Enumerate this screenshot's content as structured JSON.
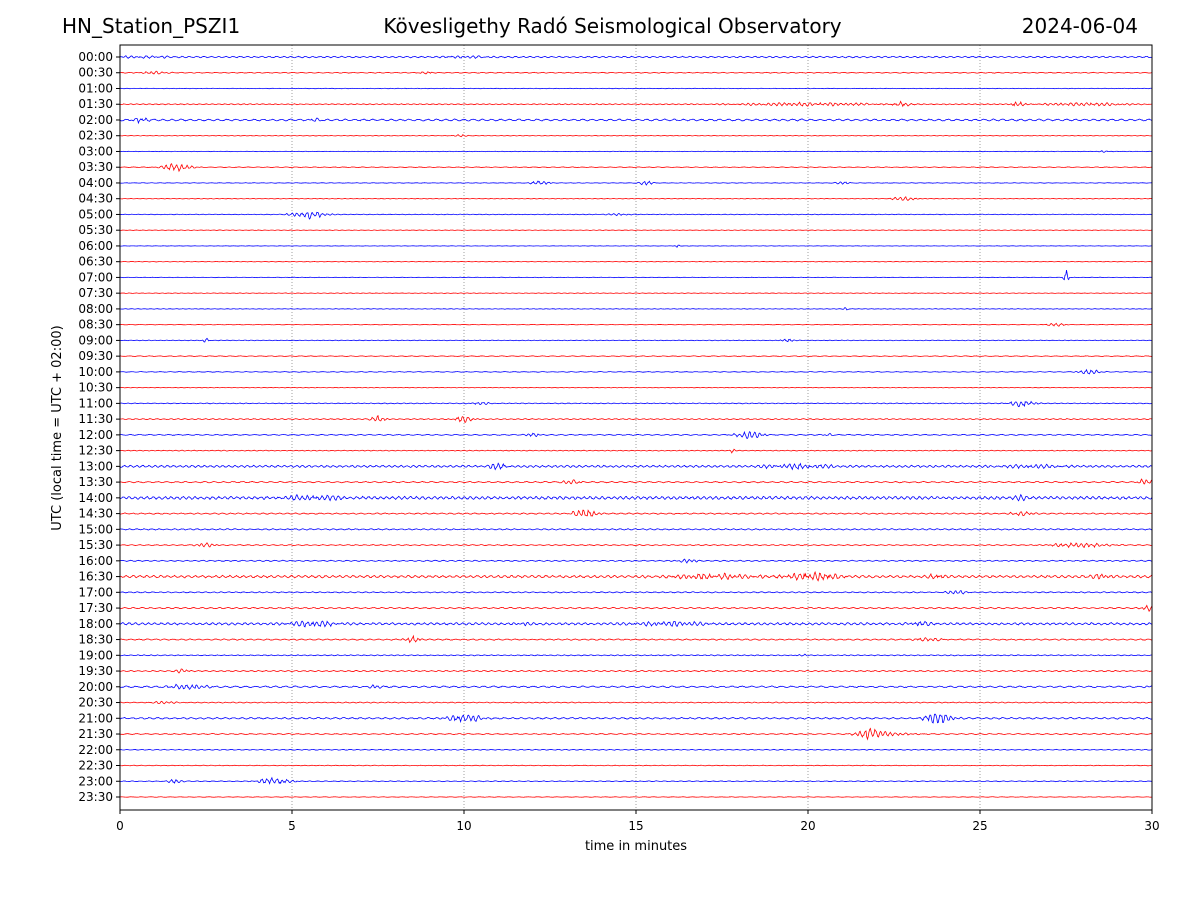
{
  "header": {
    "station": "HN_Station_PSZI1",
    "observatory": "Kövesligethy Radó Seismological Observatory",
    "date": "2024-06-04"
  },
  "chart_data": {
    "type": "line",
    "title": "Kövesligethy Radó Seismological Observatory",
    "xlabel": "time in minutes",
    "ylabel": "UTC (local time = UTC + 02:00)",
    "xlim": [
      0,
      30
    ],
    "xticks": [
      "0",
      "5",
      "10",
      "15",
      "20",
      "25",
      "30"
    ],
    "grid": "vertical dotted at each x tick",
    "colors": {
      "even_rows": "#0000ff",
      "odd_rows": "#ff0000",
      "grid": "#888888"
    },
    "series": [
      {
        "name": "00:00",
        "noise": 0.9,
        "events": [
          [
            0.5,
            1.5,
            1.0
          ],
          [
            10,
            1,
            1.0
          ]
        ]
      },
      {
        "name": "00:30",
        "noise": 0.5,
        "events": [
          [
            1,
            0.6,
            1.2
          ],
          [
            8.9,
            0.3,
            1.0
          ]
        ]
      },
      {
        "name": "01:00",
        "noise": 0.3,
        "events": []
      },
      {
        "name": "01:30",
        "noise": 0.6,
        "events": [
          [
            20,
            3,
            1.5
          ],
          [
            22.7,
            0.4,
            2.5
          ],
          [
            26.1,
            0.3,
            2.5
          ],
          [
            28,
            2,
            1.5
          ]
        ]
      },
      {
        "name": "02:00",
        "noise": 1.2,
        "events": [
          [
            0.6,
            0.3,
            2.5
          ],
          [
            5.7,
            0.3,
            1.5
          ]
        ]
      },
      {
        "name": "02:30",
        "noise": 0.3,
        "events": [
          [
            9.9,
            0.3,
            1.0
          ]
        ]
      },
      {
        "name": "03:00",
        "noise": 0.3,
        "events": [
          [
            28.6,
            0.2,
            1.0
          ]
        ]
      },
      {
        "name": "03:30",
        "noise": 0.4,
        "events": [
          [
            1.65,
            0.6,
            3.5
          ]
        ]
      },
      {
        "name": "04:00",
        "noise": 0.3,
        "events": [
          [
            12.2,
            0.4,
            2.0
          ],
          [
            15.3,
            0.3,
            2.0
          ],
          [
            21,
            0.3,
            1.5
          ]
        ]
      },
      {
        "name": "04:30",
        "noise": 0.3,
        "events": [
          [
            22.8,
            0.5,
            2.0
          ]
        ]
      },
      {
        "name": "05:00",
        "noise": 0.4,
        "events": [
          [
            5.5,
            0.7,
            4.0
          ],
          [
            14.5,
            0.5,
            1.0
          ]
        ]
      },
      {
        "name": "05:30",
        "noise": 0.3,
        "events": []
      },
      {
        "name": "06:00",
        "noise": 0.2,
        "events": [
          [
            16.2,
            0.1,
            1.5
          ]
        ]
      },
      {
        "name": "06:30",
        "noise": 0.3,
        "events": []
      },
      {
        "name": "07:00",
        "noise": 0.3,
        "events": [
          [
            27.5,
            0.1,
            7.0
          ]
        ]
      },
      {
        "name": "07:30",
        "noise": 0.3,
        "events": []
      },
      {
        "name": "08:00",
        "noise": 0.3,
        "events": [
          [
            21.1,
            0.1,
            1.5
          ]
        ]
      },
      {
        "name": "08:30",
        "noise": 0.3,
        "events": [
          [
            27.2,
            0.4,
            1.5
          ]
        ]
      },
      {
        "name": "09:00",
        "noise": 0.4,
        "events": [
          [
            2.5,
            0.1,
            3.0
          ],
          [
            19.4,
            0.3,
            1.5
          ]
        ]
      },
      {
        "name": "09:30",
        "noise": 0.4,
        "events": []
      },
      {
        "name": "10:00",
        "noise": 0.4,
        "events": [
          [
            28.2,
            0.5,
            2.0
          ]
        ]
      },
      {
        "name": "10:30",
        "noise": 0.3,
        "events": []
      },
      {
        "name": "11:00",
        "noise": 0.5,
        "events": [
          [
            10.5,
            0.5,
            1.2
          ],
          [
            26.2,
            0.5,
            3.5
          ]
        ]
      },
      {
        "name": "11:30",
        "noise": 0.6,
        "events": [
          [
            7.5,
            0.3,
            3.0
          ],
          [
            10,
            0.4,
            3.0
          ]
        ]
      },
      {
        "name": "12:00",
        "noise": 0.6,
        "events": [
          [
            12,
            0.3,
            2.0
          ],
          [
            18.3,
            0.6,
            3.0
          ],
          [
            20.6,
            0.2,
            1.5
          ]
        ]
      },
      {
        "name": "12:30",
        "noise": 0.5,
        "events": [
          [
            17.8,
            0.1,
            2.0
          ]
        ]
      },
      {
        "name": "13:00",
        "noise": 1.3,
        "events": [
          [
            11,
            0.4,
            3.0
          ],
          [
            19.7,
            1.5,
            2.0
          ],
          [
            26.5,
            1.5,
            1.5
          ]
        ]
      },
      {
        "name": "13:30",
        "noise": 0.8,
        "events": [
          [
            13.1,
            0.4,
            2.0
          ],
          [
            29.8,
            0.3,
            3.0
          ]
        ]
      },
      {
        "name": "14:00",
        "noise": 1.8,
        "events": [
          [
            5.6,
            1.2,
            2.5
          ],
          [
            26.2,
            0.3,
            2.0
          ]
        ]
      },
      {
        "name": "14:30",
        "noise": 0.8,
        "events": [
          [
            13.5,
            0.5,
            4.5
          ],
          [
            26.2,
            0.5,
            2.0
          ]
        ]
      },
      {
        "name": "15:00",
        "noise": 0.8,
        "events": []
      },
      {
        "name": "15:30",
        "noise": 0.6,
        "events": [
          [
            2.5,
            0.4,
            2.0
          ],
          [
            27.9,
            1.2,
            2.0
          ]
        ]
      },
      {
        "name": "16:00",
        "noise": 0.7,
        "events": [
          [
            16.5,
            0.5,
            1.5
          ]
        ]
      },
      {
        "name": "16:30",
        "noise": 1.5,
        "events": [
          [
            17.3,
            2,
            2.5
          ],
          [
            20.1,
            1.2,
            3.5
          ],
          [
            23.7,
            0.5,
            2.0
          ],
          [
            28.5,
            0.4,
            3.0
          ]
        ]
      },
      {
        "name": "17:00",
        "noise": 0.7,
        "events": [
          [
            24.3,
            0.5,
            1.5
          ]
        ]
      },
      {
        "name": "17:30",
        "noise": 0.8,
        "events": [
          [
            29.9,
            0.3,
            2.5
          ]
        ]
      },
      {
        "name": "18:00",
        "noise": 1.4,
        "events": [
          [
            5.6,
            1.2,
            2.5
          ],
          [
            11.7,
            0.3,
            2.0
          ],
          [
            16,
            1.5,
            2.0
          ],
          [
            23.3,
            0.5,
            2.0
          ]
        ]
      },
      {
        "name": "18:30",
        "noise": 0.8,
        "events": [
          [
            8.5,
            0.3,
            3.0
          ],
          [
            23.5,
            0.6,
            1.5
          ]
        ]
      },
      {
        "name": "19:00",
        "noise": 0.6,
        "events": [
          [
            19.8,
            0.3,
            1.0
          ]
        ]
      },
      {
        "name": "19:30",
        "noise": 0.7,
        "events": [
          [
            1.8,
            0.3,
            2.0
          ]
        ]
      },
      {
        "name": "20:00",
        "noise": 1.0,
        "events": [
          [
            2,
            0.8,
            2.5
          ],
          [
            7.4,
            0.3,
            1.5
          ],
          [
            29.9,
            0.2,
            1.5
          ]
        ]
      },
      {
        "name": "20:30",
        "noise": 0.6,
        "events": [
          [
            1.3,
            0.5,
            1.2
          ]
        ]
      },
      {
        "name": "21:00",
        "noise": 1.0,
        "events": [
          [
            10,
            0.8,
            3.5
          ],
          [
            23.8,
            0.6,
            5.0
          ]
        ]
      },
      {
        "name": "21:30",
        "noise": 0.6,
        "events": [
          [
            21.8,
            0.6,
            4.5
          ],
          [
            22.5,
            0.9,
            1.5
          ]
        ]
      },
      {
        "name": "22:00",
        "noise": 0.5,
        "events": []
      },
      {
        "name": "22:30",
        "noise": 0.4,
        "events": []
      },
      {
        "name": "23:00",
        "noise": 0.5,
        "events": [
          [
            1.6,
            0.3,
            2.0
          ],
          [
            4.5,
            0.7,
            3.0
          ]
        ]
      },
      {
        "name": "23:30",
        "noise": 0.3,
        "events": []
      }
    ]
  }
}
